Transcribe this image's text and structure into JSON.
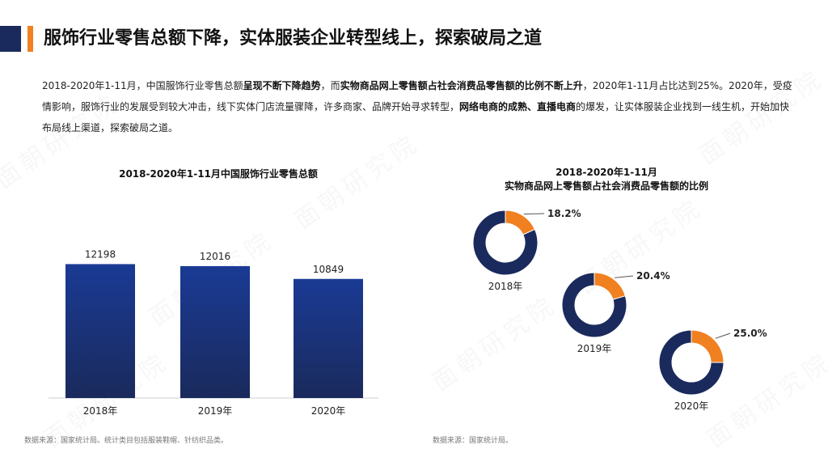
{
  "header": {
    "title": "服饰行业零售总额下降，实体服装企业转型线上，探索破局之道"
  },
  "intro": {
    "p1": "2018-2020年1-11月，中国服饰行业零售总额",
    "b1": "呈现不断下降趋势",
    "p2": "，而",
    "b2": "实物商品网上零售额占社会消费品零售额的比例不断上升",
    "p3": "，2020年1-11月占比达到25%。2020年，受疫情影响，服饰行业的发展受到较大冲击，线下实体门店流量骤降，许多商家、品牌开始寻求转型，",
    "b3": "网络电商的成熟、直播电商",
    "p4": "的爆发，让实体服装企业找到一线生机，开始加快布局线上渠道，探索破局之道。"
  },
  "watermark": "面朝研究院",
  "left_chart": {
    "title": "2018-2020年1-11月中国服饰行业零售总额",
    "source": "数据来源：国家统计局。统计类目包括服装鞋帽、针纺织品类。"
  },
  "right_chart": {
    "title_line1": "2018-2020年1-11月",
    "title_line2": "实物商品网上零售额占社会消费品零售额的比例",
    "source": "数据来源：国家统计局。"
  },
  "colors": {
    "navy": "#1b2a5c",
    "orange": "#f08020",
    "bar_top": "#1a3a94",
    "bar_bottom": "#1a2a5c"
  },
  "chart_data": [
    {
      "type": "bar",
      "title": "2018-2020年1-11月中国服饰行业零售总额",
      "categories": [
        "2018年",
        "2019年",
        "2020年"
      ],
      "values": [
        12198,
        12016,
        10849
      ],
      "ylim": [
        0,
        14000
      ]
    },
    {
      "type": "pie",
      "title": "2018-2020年1-11月实物商品网上零售额占社会消费品零售额的比例",
      "categories": [
        "2018年",
        "2019年",
        "2020年"
      ],
      "values": [
        18.2,
        20.4,
        25.0
      ],
      "labels": [
        "18.2%",
        "20.4%",
        "25.0%"
      ]
    }
  ]
}
